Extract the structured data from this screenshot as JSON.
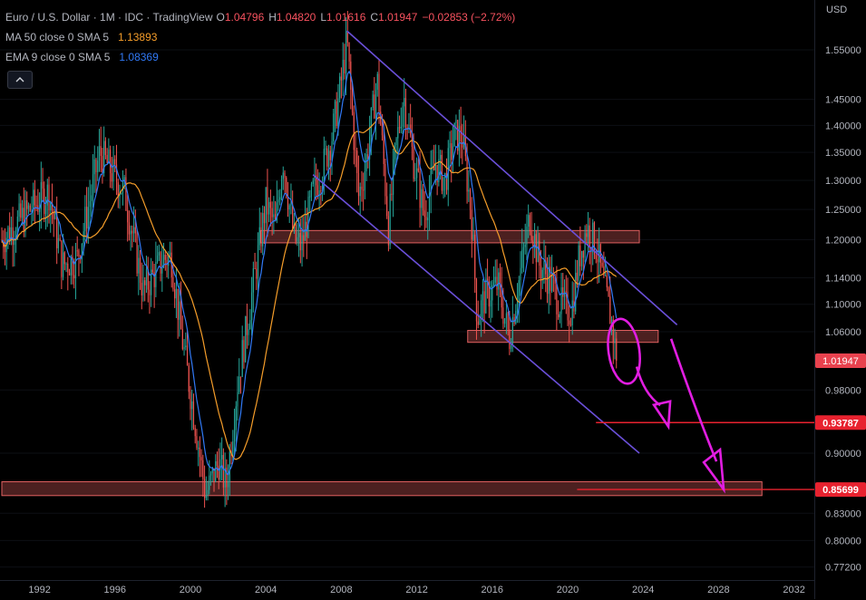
{
  "header": {
    "symbol": "Euro / U.S. Dollar · 1M · IDC · TradingView",
    "ohlc": [
      {
        "label": "O",
        "value": "1.04796"
      },
      {
        "label": "H",
        "value": "1.04820"
      },
      {
        "label": "L",
        "value": "1.01616"
      },
      {
        "label": "C",
        "value": "1.01947"
      }
    ],
    "change": "−0.02853 (−2.72%)",
    "indicators": [
      {
        "name": "MA 50 close 0 SMA 5",
        "value": "1.13893",
        "color": "#f59d2a"
      },
      {
        "name": "EMA 9 close 0 SMA 5",
        "value": "1.08369",
        "color": "#3179f5"
      }
    ],
    "collapse_icon": "chevron-up-icon"
  },
  "colors": {
    "up": "#26a69a",
    "down": "#ef5350",
    "ma": "#f59d2a",
    "ema": "#3179f5",
    "channel": "#6a4fd8",
    "zone_fill": "#8a3a3a",
    "zone_stroke": "#e06060",
    "hline": "#e8222f",
    "drawing": "#e11de1",
    "last_price_bg": "#e8424e"
  },
  "chart_data": {
    "type": "candlestick",
    "symbol": "EURUSD",
    "interval": "1M",
    "scale": "log",
    "currency": "USD",
    "y_ticks": [
      1.55,
      1.45,
      1.4,
      1.35,
      1.3,
      1.25,
      1.2,
      1.14,
      1.1,
      1.06,
      0.98,
      0.9,
      0.83,
      0.8,
      0.772
    ],
    "y_tick_labels": [
      "1.55000",
      "1.45000",
      "1.40000",
      "1.35000",
      "1.30000",
      "1.25000",
      "1.20000",
      "1.14000",
      "1.10000",
      "1.06000",
      "0.98000",
      "0.90000",
      "0.83000",
      "0.80000",
      "0.77200"
    ],
    "x_ticks": [
      "1992",
      "1996",
      "2000",
      "2004",
      "2008",
      "2012",
      "2016",
      "2020",
      "2024",
      "2028",
      "2032"
    ],
    "price_path": [
      [
        1990.0,
        1.2
      ],
      [
        1991.5,
        1.25
      ],
      [
        1992.5,
        1.28
      ],
      [
        1993.2,
        1.16
      ],
      [
        1994.0,
        1.17
      ],
      [
        1995.2,
        1.35
      ],
      [
        1996.5,
        1.28
      ],
      [
        1997.5,
        1.12
      ],
      [
        1998.6,
        1.17
      ],
      [
        1999.0,
        1.17
      ],
      [
        1999.5,
        1.06
      ],
      [
        2000.3,
        0.93
      ],
      [
        2000.8,
        0.85
      ],
      [
        2001.5,
        0.89
      ],
      [
        2001.9,
        0.86
      ],
      [
        2002.5,
        0.99
      ],
      [
        2003.0,
        1.07
      ],
      [
        2003.5,
        1.16
      ],
      [
        2004.0,
        1.26
      ],
      [
        2004.5,
        1.22
      ],
      [
        2004.9,
        1.34
      ],
      [
        2005.5,
        1.2
      ],
      [
        2005.9,
        1.19
      ],
      [
        2006.5,
        1.28
      ],
      [
        2007.0,
        1.32
      ],
      [
        2007.5,
        1.38
      ],
      [
        2007.9,
        1.46
      ],
      [
        2008.3,
        1.57
      ],
      [
        2008.9,
        1.27
      ],
      [
        2009.3,
        1.33
      ],
      [
        2009.9,
        1.49
      ],
      [
        2010.5,
        1.22
      ],
      [
        2010.9,
        1.36
      ],
      [
        2011.3,
        1.46
      ],
      [
        2011.8,
        1.34
      ],
      [
        2012.4,
        1.24
      ],
      [
        2013.0,
        1.33
      ],
      [
        2013.5,
        1.3
      ],
      [
        2014.0,
        1.38
      ],
      [
        2014.4,
        1.38
      ],
      [
        2014.9,
        1.24
      ],
      [
        2015.2,
        1.08
      ],
      [
        2015.6,
        1.11
      ],
      [
        2016.3,
        1.13
      ],
      [
        2016.9,
        1.05
      ],
      [
        2017.5,
        1.15
      ],
      [
        2018.0,
        1.24
      ],
      [
        2018.5,
        1.16
      ],
      [
        2019.0,
        1.14
      ],
      [
        2019.6,
        1.1
      ],
      [
        2020.2,
        1.09
      ],
      [
        2020.6,
        1.17
      ],
      [
        2021.0,
        1.22
      ],
      [
        2021.5,
        1.19
      ],
      [
        2021.9,
        1.13
      ],
      [
        2022.3,
        1.08
      ],
      [
        2022.6,
        1.02
      ]
    ],
    "indicators": [
      {
        "name": "MA 50 close 0 SMA 5",
        "last": 1.13893
      },
      {
        "name": "EMA 9 close 0 SMA 5",
        "last": 1.08369
      }
    ],
    "last_price": {
      "value": 1.01947,
      "label": "1.01947"
    },
    "horizontal_lines": [
      {
        "price": 0.93787,
        "label": "0.93787"
      },
      {
        "price": 0.85699,
        "label": "0.85699"
      }
    ],
    "support_resistance_zones": [
      {
        "low": 1.195,
        "high": 1.215,
        "from": 2003.7,
        "to": 2023.8
      },
      {
        "low": 1.045,
        "high": 1.062,
        "from": 2014.7,
        "to": 2024.8
      },
      {
        "low": 0.85,
        "high": 0.866,
        "from": 1990.0,
        "to": 2030.3
      }
    ],
    "channel": {
      "upper": [
        [
          2008.3,
          1.59
        ],
        [
          2025.8,
          1.07
        ]
      ],
      "lower": [
        [
          2006.5,
          1.31
        ],
        [
          2023.8,
          0.9
        ]
      ]
    }
  }
}
